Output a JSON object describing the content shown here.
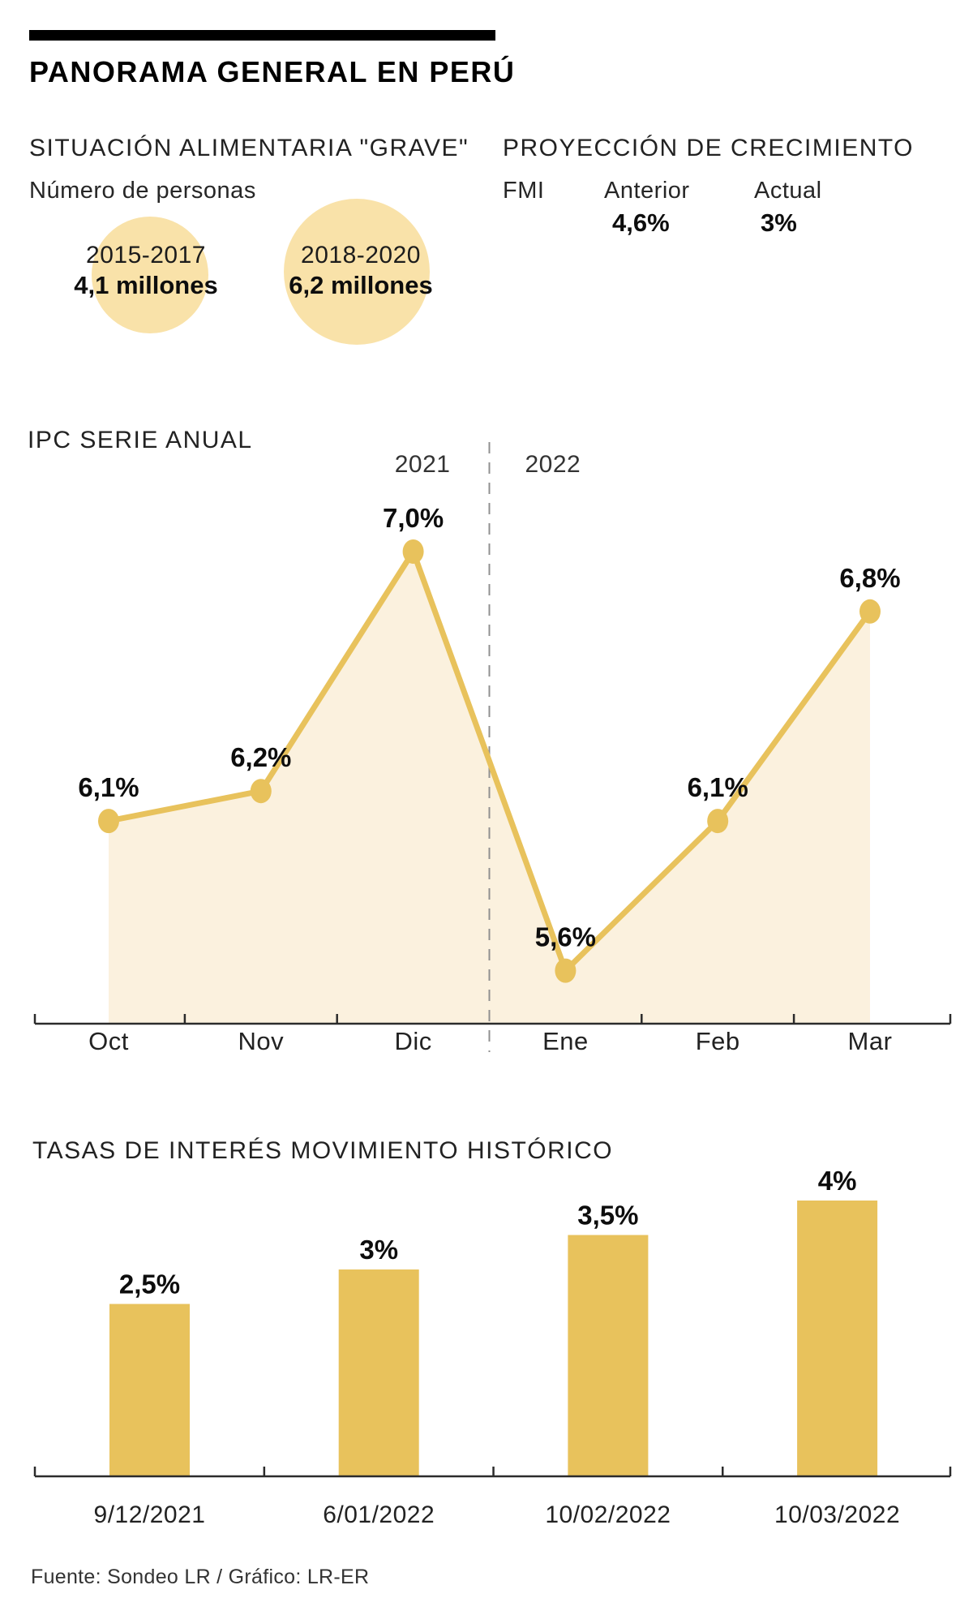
{
  "header": {
    "title": "PANORAMA GENERAL EN PERÚ"
  },
  "food_situation": {
    "title": "SITUACIÓN ALIMENTARIA \"GRAVE\"",
    "subtitle": "Número de personas",
    "bubbles": [
      {
        "period": "2015-2017",
        "value": "4,1 millones"
      },
      {
        "period": "2018-2020",
        "value": "6,2 millones"
      }
    ]
  },
  "growth_projection": {
    "title": "PROYECCIÓN DE CRECIMIENTO",
    "org": "FMI",
    "columns": [
      {
        "label": "Anterior",
        "value": "4,6%"
      },
      {
        "label": "Actual",
        "value": "3%"
      }
    ]
  },
  "footer": {
    "source": "Fuente: Sondeo LR / Gráfico: LR-ER"
  },
  "colors": {
    "gold": "#e8c25c",
    "bubble": "#f9e2a9",
    "area": "#fbf1de",
    "divider": "#909090",
    "axis": "#2b2b2b",
    "ink": "#111111"
  },
  "chart_data": [
    {
      "type": "line",
      "title": "IPC SERIE ANUAL",
      "categories": [
        "Oct",
        "Nov",
        "Dic",
        "Ene",
        "Feb",
        "Mar"
      ],
      "values": [
        6.1,
        6.2,
        7.0,
        5.6,
        6.1,
        6.8
      ],
      "labels": [
        "6,1%",
        "6,2%",
        "7,0%",
        "5,6%",
        "6,1%",
        "6,8%"
      ],
      "year_divider": {
        "left": "2021",
        "right": "2022",
        "after_index": 2
      },
      "area_fill": true,
      "grid": false,
      "ylim": [
        5.4,
        7.6
      ],
      "xlabel": "",
      "ylabel": ""
    },
    {
      "type": "bar",
      "title": "TASAS DE INTERÉS MOVIMIENTO HISTÓRICO",
      "categories": [
        "9/12/2021",
        "6/01/2022",
        "10/02/2022",
        "10/03/2022"
      ],
      "values": [
        2.5,
        3,
        3.5,
        4
      ],
      "labels": [
        "2,5%",
        "3%",
        "3,5%",
        "4%"
      ],
      "grid": false,
      "ylim": [
        0,
        4.7
      ],
      "xlabel": "",
      "ylabel": ""
    }
  ]
}
